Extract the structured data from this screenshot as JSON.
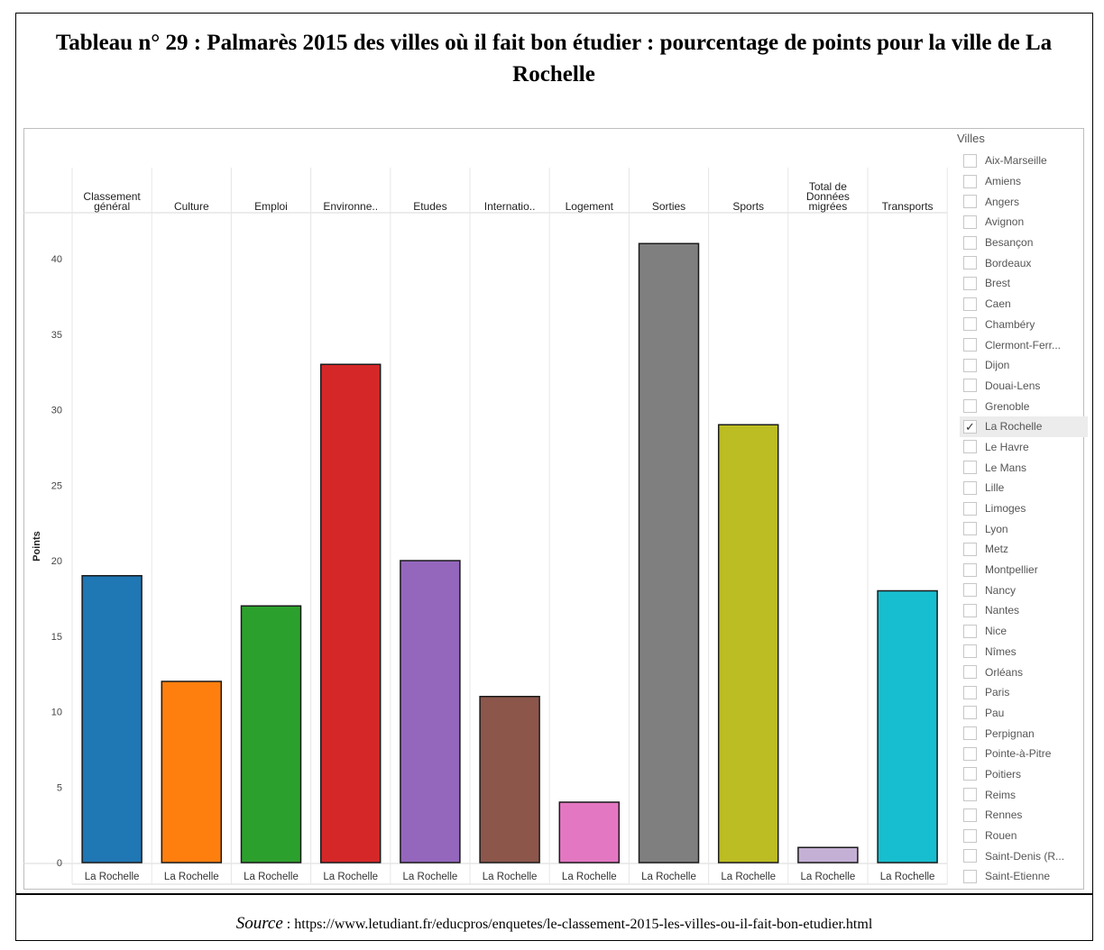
{
  "title": "Tableau n° 29 : Palmarès 2015 des villes où il fait bon étudier : pourcentage de points pour la ville de La Rochelle",
  "source_label": "Source",
  "source_sep": " : ",
  "source_url": "https://www.letudiant.fr/educpros/enquetes/le-classement-2015-les-villes-ou-il-fait-bon-etudier.html",
  "legend": {
    "title": "Villes",
    "items": [
      {
        "label": "Aix-Marseille",
        "checked": false
      },
      {
        "label": "Amiens",
        "checked": false
      },
      {
        "label": "Angers",
        "checked": false
      },
      {
        "label": "Avignon",
        "checked": false
      },
      {
        "label": "Besançon",
        "checked": false
      },
      {
        "label": "Bordeaux",
        "checked": false
      },
      {
        "label": "Brest",
        "checked": false
      },
      {
        "label": "Caen",
        "checked": false
      },
      {
        "label": "Chambéry",
        "checked": false
      },
      {
        "label": "Clermont-Ferr...",
        "checked": false
      },
      {
        "label": "Dijon",
        "checked": false
      },
      {
        "label": "Douai-Lens",
        "checked": false
      },
      {
        "label": "Grenoble",
        "checked": false
      },
      {
        "label": "La Rochelle",
        "checked": true
      },
      {
        "label": "Le Havre",
        "checked": false
      },
      {
        "label": "Le Mans",
        "checked": false
      },
      {
        "label": "Lille",
        "checked": false
      },
      {
        "label": "Limoges",
        "checked": false
      },
      {
        "label": "Lyon",
        "checked": false
      },
      {
        "label": "Metz",
        "checked": false
      },
      {
        "label": "Montpellier",
        "checked": false
      },
      {
        "label": "Nancy",
        "checked": false
      },
      {
        "label": "Nantes",
        "checked": false
      },
      {
        "label": "Nice",
        "checked": false
      },
      {
        "label": "Nîmes",
        "checked": false
      },
      {
        "label": "Orléans",
        "checked": false
      },
      {
        "label": "Paris",
        "checked": false
      },
      {
        "label": "Pau",
        "checked": false
      },
      {
        "label": "Perpignan",
        "checked": false
      },
      {
        "label": "Pointe-à-Pitre",
        "checked": false
      },
      {
        "label": "Poitiers",
        "checked": false
      },
      {
        "label": "Reims",
        "checked": false
      },
      {
        "label": "Rennes",
        "checked": false
      },
      {
        "label": "Rouen",
        "checked": false
      },
      {
        "label": "Saint-Denis (R...",
        "checked": false
      },
      {
        "label": "Saint-Etienne",
        "checked": false
      }
    ]
  },
  "chart_data": {
    "type": "bar",
    "ylabel": "Points",
    "ylim": [
      0,
      42
    ],
    "yticks": [
      0,
      5,
      10,
      15,
      20,
      25,
      30,
      35,
      40
    ],
    "grid": false,
    "legend_position": "right",
    "x_label": "La Rochelle",
    "categories": [
      {
        "header": [
          "Classement",
          "général"
        ],
        "value": 19,
        "color": "#1f77b4"
      },
      {
        "header": [
          "Culture"
        ],
        "value": 12,
        "color": "#ff7f0e"
      },
      {
        "header": [
          "Emploi"
        ],
        "value": 17,
        "color": "#2ca02c"
      },
      {
        "header": [
          "Environne.."
        ],
        "value": 33,
        "color": "#d62728"
      },
      {
        "header": [
          "Etudes"
        ],
        "value": 20,
        "color": "#9467bd"
      },
      {
        "header": [
          "Internatio.."
        ],
        "value": 11,
        "color": "#8c564b"
      },
      {
        "header": [
          "Logement"
        ],
        "value": 4,
        "color": "#e377c2"
      },
      {
        "header": [
          "Sorties"
        ],
        "value": 41,
        "color": "#7f7f7f"
      },
      {
        "header": [
          "Sports"
        ],
        "value": 29,
        "color": "#bcbd22"
      },
      {
        "header": [
          "Total de",
          "Données",
          "migrées"
        ],
        "value": 1,
        "color": "#c5b0d5"
      },
      {
        "header": [
          "Transports"
        ],
        "value": 18,
        "color": "#17becf"
      }
    ]
  }
}
